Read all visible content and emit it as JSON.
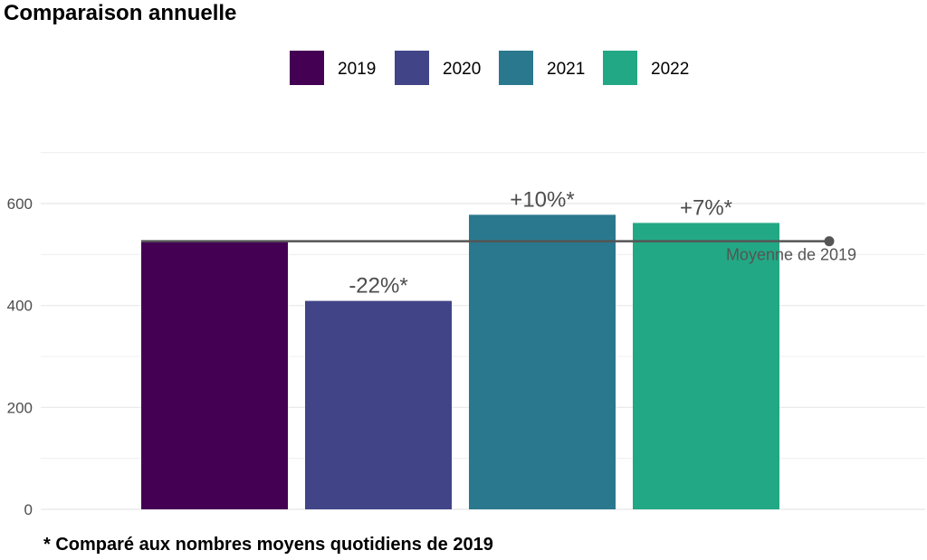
{
  "chart_data": {
    "type": "bar",
    "title": "Comparaison annuelle",
    "caption": "* Comparé aux nombres moyens quotidiens de 2019",
    "xlabel": "",
    "ylabel": "",
    "categories": [
      "2019",
      "2020",
      "2021",
      "2022"
    ],
    "values": [
      526,
      409,
      578,
      562
    ],
    "bar_labels": [
      "",
      "-22%*",
      "+10%*",
      "+7%*"
    ],
    "colors": [
      "#440154",
      "#414487",
      "#2A788E",
      "#22A884"
    ],
    "legend": {
      "position": "top",
      "entries": [
        "2019",
        "2020",
        "2021",
        "2022"
      ]
    },
    "ylim": [
      0,
      700
    ],
    "yticks": [
      0,
      200,
      400,
      600
    ],
    "grid": true,
    "reference_line": {
      "value": 526,
      "label": "Moyenne de 2019",
      "color": "#555555"
    }
  }
}
